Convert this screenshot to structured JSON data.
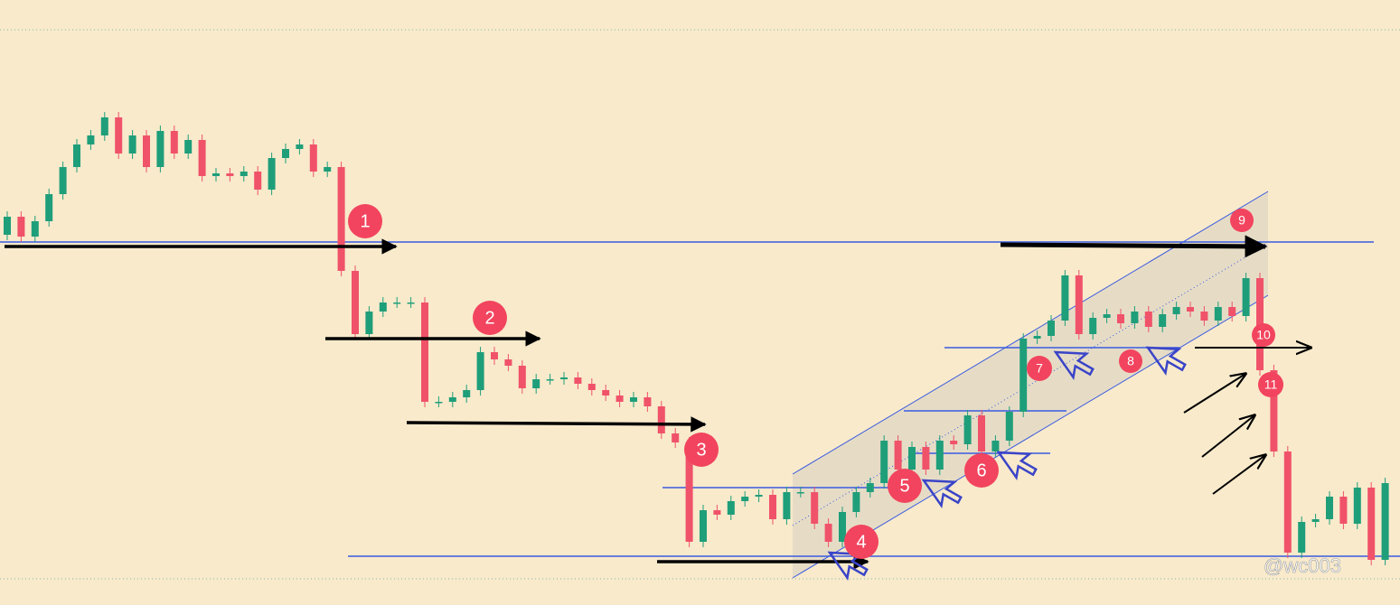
{
  "chart_data": {
    "type": "candlestick",
    "up_color": "#1f9e7a",
    "down_color": "#f0526a",
    "ylim": [
      0,
      670
    ],
    "open": [
      410,
      430,
      408,
      425,
      455,
      485,
      510,
      520,
      540,
      500,
      520,
      485,
      525,
      500,
      515,
      475,
      478,
      475,
      480,
      460,
      495,
      505,
      510,
      480,
      485,
      370,
      300,
      325,
      335,
      335,
      335,
      225,
      225,
      230,
      238,
      280,
      272,
      265,
      240,
      250,
      250,
      252,
      245,
      238,
      232,
      225,
      230,
      220,
      190,
      180,
      70,
      105,
      100,
      115,
      120,
      122,
      95,
      125,
      125,
      90,
      70,
      103,
      125,
      135,
      182,
      150,
      175,
      150,
      182,
      178,
      210,
      170,
      182,
      214,
      295,
      298,
      315,
      365,
      300,
      318,
      322,
      312,
      325,
      308,
      322,
      330,
      325,
      315,
      330,
      320,
      362,
      260,
      170,
      58,
      92,
      95,
      120,
      90,
      130,
      50
    ],
    "close": [
      430,
      408,
      425,
      455,
      485,
      510,
      520,
      540,
      500,
      520,
      485,
      525,
      500,
      515,
      475,
      478,
      475,
      480,
      460,
      495,
      505,
      510,
      480,
      485,
      370,
      300,
      325,
      335,
      335,
      335,
      225,
      225,
      230,
      238,
      280,
      272,
      265,
      240,
      250,
      250,
      252,
      245,
      238,
      232,
      225,
      230,
      220,
      190,
      180,
      70,
      105,
      100,
      115,
      120,
      122,
      95,
      125,
      125,
      90,
      70,
      103,
      125,
      135,
      182,
      150,
      175,
      150,
      182,
      178,
      210,
      170,
      182,
      214,
      295,
      298,
      315,
      365,
      300,
      318,
      322,
      312,
      325,
      308,
      322,
      330,
      325,
      315,
      330,
      320,
      362,
      260,
      170,
      58,
      92,
      95,
      120,
      90,
      130,
      50,
      135
    ],
    "annotations": [
      "1",
      "2",
      "3",
      "4",
      "5",
      "6",
      "7",
      "8",
      "9",
      "10",
      "11"
    ],
    "watermark": "@wc003"
  }
}
